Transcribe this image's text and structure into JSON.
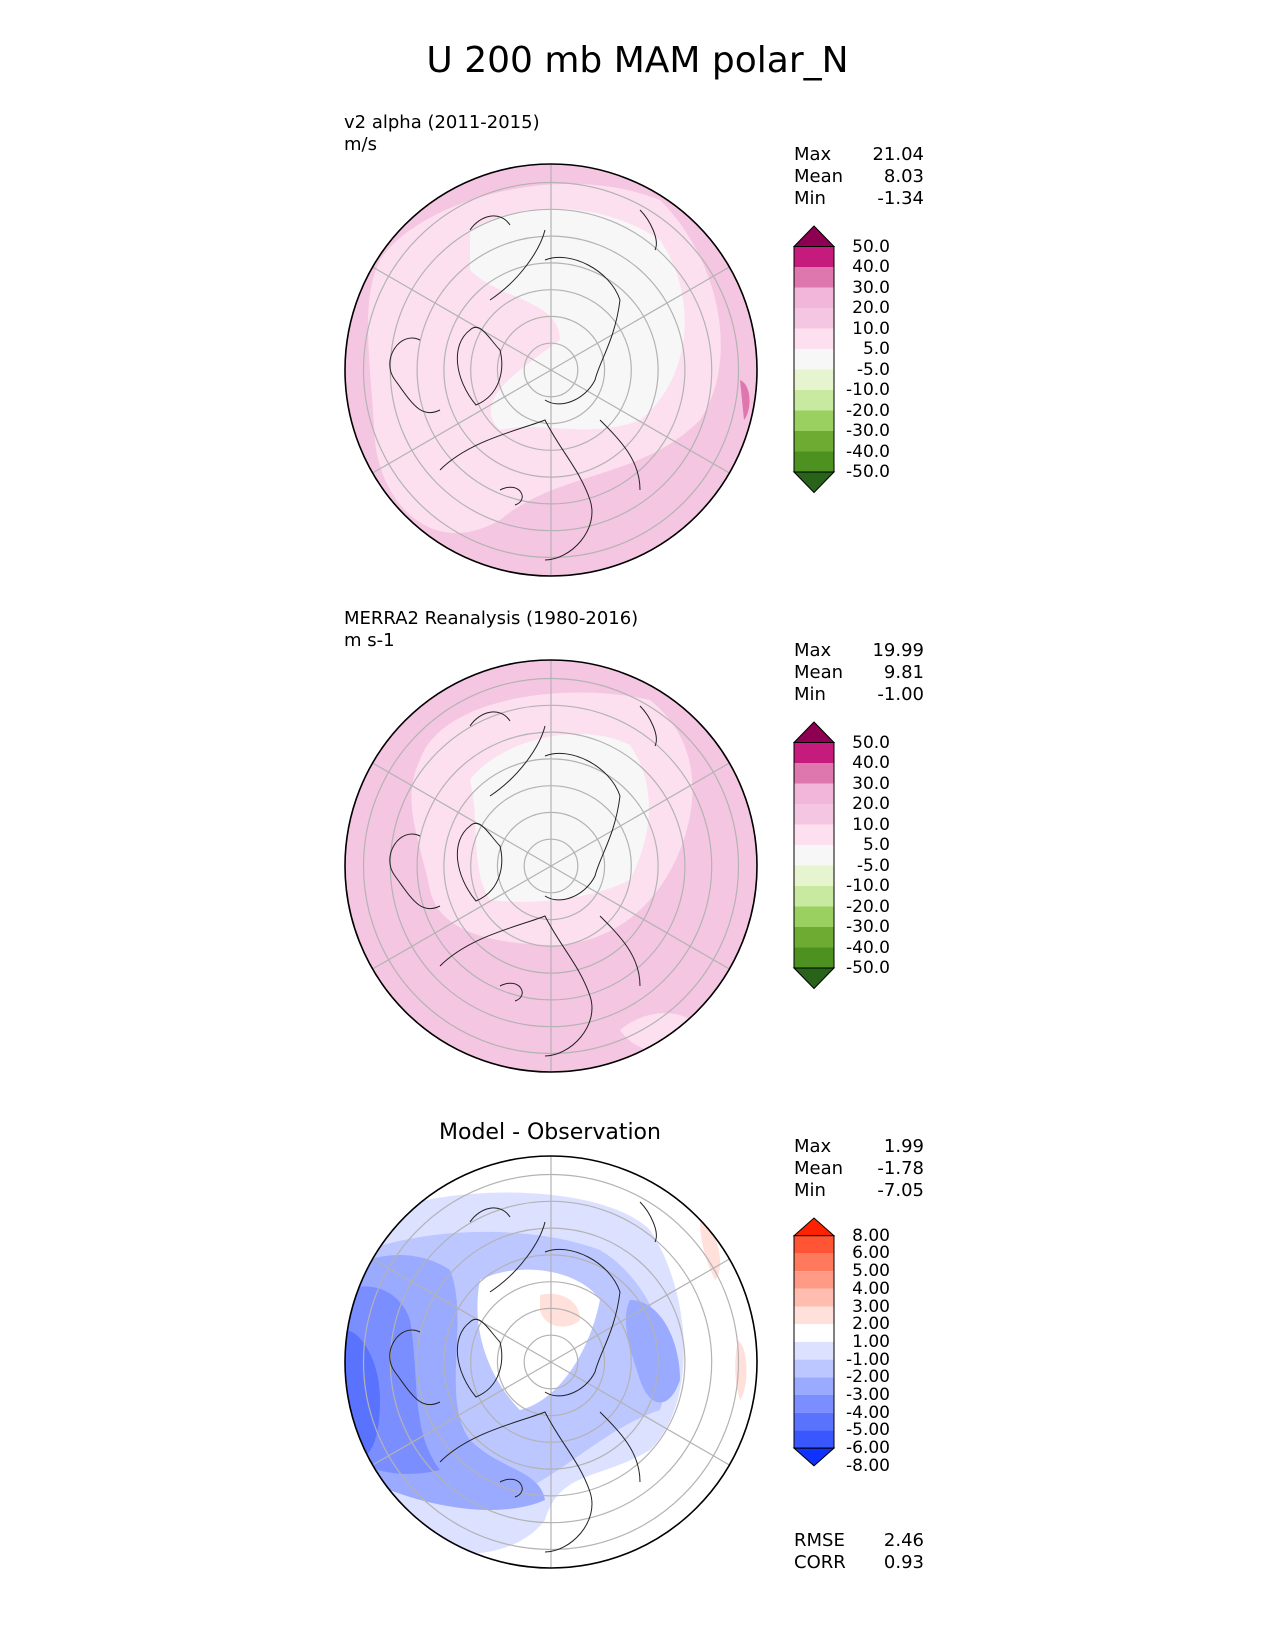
{
  "figure_title": "U 200 mb MAM polar_N",
  "colors": {
    "pink": [
      "#8e0152",
      "#c51b7d",
      "#de77ae",
      "#f1b6da",
      "#f5c6e1",
      "#fde0ef",
      "#f7f7f7",
      "#e6f5d0",
      "#c8e9a0",
      "#9ad060",
      "#6eab33",
      "#4d9221",
      "#276419"
    ],
    "diff": [
      "#ff2200",
      "#ff5535",
      "#ff7a5c",
      "#ff9a86",
      "#ffbdb0",
      "#ffe0da",
      "#ffffff",
      "#dbe1ff",
      "#bcc6ff",
      "#9aaaff",
      "#7b8eff",
      "#5a73ff",
      "#3a56ff",
      "#0f32ff"
    ]
  },
  "chart_data": [
    {
      "type": "heatmap",
      "projection": "north polar stereographic",
      "label": "v2 alpha (2011-2015)",
      "units": "m/s",
      "stats": {
        "max": "21.04",
        "mean": "8.03",
        "min": "-1.34"
      },
      "colorbar_levels": [
        "50.0",
        "40.0",
        "30.0",
        "20.0",
        "10.0",
        "5.0",
        "-5.0",
        "-10.0",
        "-20.0",
        "-30.0",
        "-40.0",
        "-50.0"
      ]
    },
    {
      "type": "heatmap",
      "projection": "north polar stereographic",
      "label": "MERRA2 Reanalysis (1980-2016)",
      "units": "m s-1",
      "stats": {
        "max": "19.99",
        "mean": "9.81",
        "min": "-1.00"
      },
      "colorbar_levels": [
        "50.0",
        "40.0",
        "30.0",
        "20.0",
        "10.0",
        "5.0",
        "-5.0",
        "-10.0",
        "-20.0",
        "-30.0",
        "-40.0",
        "-50.0"
      ]
    },
    {
      "type": "heatmap",
      "projection": "north polar stereographic",
      "label": "Model - Observation",
      "stats": {
        "max": "1.99",
        "mean": "-1.78",
        "min": "-7.05"
      },
      "colorbar_levels": [
        "8.00",
        "6.00",
        "5.00",
        "4.00",
        "3.00",
        "2.00",
        "1.00",
        "-1.00",
        "-2.00",
        "-3.00",
        "-4.00",
        "-5.00",
        "-6.00",
        "-8.00"
      ],
      "metrics": {
        "rmse": "2.46",
        "corr": "0.93"
      }
    }
  ],
  "labels": {
    "max": "Max",
    "mean": "Mean",
    "min": "Min",
    "rmse": "RMSE",
    "corr": "CORR"
  }
}
